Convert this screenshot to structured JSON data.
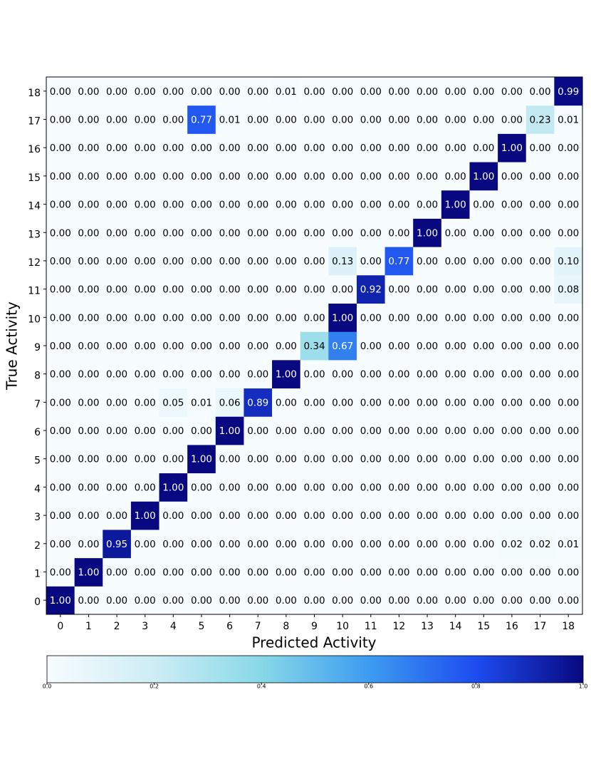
{
  "chart_data": {
    "type": "heatmap",
    "xlabel": "Predicted Activity",
    "ylabel": "True Activity",
    "x_categories": [
      "0",
      "1",
      "2",
      "3",
      "4",
      "5",
      "6",
      "7",
      "8",
      "9",
      "10",
      "11",
      "12",
      "13",
      "14",
      "15",
      "16",
      "17",
      "18"
    ],
    "y_categories": [
      "0",
      "1",
      "2",
      "3",
      "4",
      "5",
      "6",
      "7",
      "8",
      "9",
      "10",
      "11",
      "12",
      "13",
      "14",
      "15",
      "16",
      "17",
      "18"
    ],
    "values": [
      [
        1,
        0,
        0,
        0,
        0,
        0,
        0,
        0,
        0,
        0,
        0,
        0,
        0,
        0,
        0,
        0,
        0,
        0,
        0
      ],
      [
        0,
        1,
        0,
        0,
        0,
        0,
        0,
        0,
        0,
        0,
        0,
        0,
        0,
        0,
        0,
        0,
        0,
        0,
        0
      ],
      [
        0,
        0,
        0.95,
        0,
        0,
        0,
        0,
        0,
        0,
        0,
        0,
        0,
        0,
        0,
        0,
        0,
        0.02,
        0.02,
        0.01
      ],
      [
        0,
        0,
        0,
        1,
        0,
        0,
        0,
        0,
        0,
        0,
        0,
        0,
        0,
        0,
        0,
        0,
        0,
        0,
        0
      ],
      [
        0,
        0,
        0,
        0,
        1,
        0,
        0,
        0,
        0,
        0,
        0,
        0,
        0,
        0,
        0,
        0,
        0,
        0,
        0
      ],
      [
        0,
        0,
        0,
        0,
        0,
        1,
        0,
        0,
        0,
        0,
        0,
        0,
        0,
        0,
        0,
        0,
        0,
        0,
        0
      ],
      [
        0,
        0,
        0,
        0,
        0,
        0,
        1,
        0,
        0,
        0,
        0,
        0,
        0,
        0,
        0,
        0,
        0,
        0,
        0
      ],
      [
        0,
        0,
        0,
        0,
        0.05,
        0.01,
        0.06,
        0.89,
        0,
        0,
        0,
        0,
        0,
        0,
        0,
        0,
        0,
        0,
        0
      ],
      [
        0,
        0,
        0,
        0,
        0,
        0,
        0,
        0,
        1,
        0,
        0,
        0,
        0,
        0,
        0,
        0,
        0,
        0,
        0
      ],
      [
        0,
        0,
        0,
        0,
        0,
        0,
        0,
        0,
        0,
        0.34,
        0.67,
        0,
        0,
        0,
        0,
        0,
        0,
        0,
        0
      ],
      [
        0,
        0,
        0,
        0,
        0,
        0,
        0,
        0,
        0,
        0,
        1,
        0,
        0,
        0,
        0,
        0,
        0,
        0,
        0
      ],
      [
        0,
        0,
        0,
        0,
        0,
        0,
        0,
        0,
        0,
        0,
        0,
        0.92,
        0,
        0,
        0,
        0,
        0,
        0,
        0.08
      ],
      [
        0,
        0,
        0,
        0,
        0,
        0,
        0,
        0,
        0,
        0,
        0.13,
        0,
        0.77,
        0,
        0,
        0,
        0,
        0,
        0.1
      ],
      [
        0,
        0,
        0,
        0,
        0,
        0,
        0,
        0,
        0,
        0,
        0,
        0,
        0,
        1,
        0,
        0,
        0,
        0,
        0
      ],
      [
        0,
        0,
        0,
        0,
        0,
        0,
        0,
        0,
        0,
        0,
        0,
        0,
        0,
        0,
        1,
        0,
        0,
        0,
        0
      ],
      [
        0,
        0,
        0,
        0,
        0,
        0,
        0,
        0,
        0,
        0,
        0,
        0,
        0,
        0,
        0,
        1,
        0,
        0,
        0
      ],
      [
        0,
        0,
        0,
        0,
        0,
        0,
        0,
        0,
        0,
        0,
        0,
        0,
        0,
        0,
        0,
        0,
        1,
        0,
        0
      ],
      [
        0,
        0,
        0,
        0,
        0,
        0.77,
        0.01,
        0,
        0,
        0,
        0,
        0,
        0,
        0,
        0,
        0,
        0,
        0.23,
        0.01
      ],
      [
        0,
        0,
        0,
        0,
        0,
        0,
        0,
        0,
        0.01,
        0,
        0,
        0,
        0,
        0,
        0,
        0,
        0,
        0,
        0.99
      ]
    ],
    "value_labels": [
      [
        "1.00",
        "0.00",
        "0.00",
        "0.00",
        "0.00",
        "0.00",
        "0.00",
        "0.00",
        "0.00",
        "0.00",
        "0.00",
        "0.00",
        "0.00",
        "0.00",
        "0.00",
        "0.00",
        "0.00",
        "0.00",
        "0.00"
      ],
      [
        "0.00",
        "1.00",
        "0.00",
        "0.00",
        "0.00",
        "0.00",
        "0.00",
        "0.00",
        "0.00",
        "0.00",
        "0.00",
        "0.00",
        "0.00",
        "0.00",
        "0.00",
        "0.00",
        "0.00",
        "0.00",
        "0.00"
      ],
      [
        "0.00",
        "0.00",
        "0.95",
        "0.00",
        "0.00",
        "0.00",
        "0.00",
        "0.00",
        "0.00",
        "0.00",
        "0.00",
        "0.00",
        "0.00",
        "0.00",
        "0.00",
        "0.00",
        "0.02",
        "0.02",
        "0.01"
      ],
      [
        "0.00",
        "0.00",
        "0.00",
        "1.00",
        "0.00",
        "0.00",
        "0.00",
        "0.00",
        "0.00",
        "0.00",
        "0.00",
        "0.00",
        "0.00",
        "0.00",
        "0.00",
        "0.00",
        "0.00",
        "0.00",
        "0.00"
      ],
      [
        "0.00",
        "0.00",
        "0.00",
        "0.00",
        "1.00",
        "0.00",
        "0.00",
        "0.00",
        "0.00",
        "0.00",
        "0.00",
        "0.00",
        "0.00",
        "0.00",
        "0.00",
        "0.00",
        "0.00",
        "0.00",
        "0.00"
      ],
      [
        "0.00",
        "0.00",
        "0.00",
        "0.00",
        "0.00",
        "1.00",
        "0.00",
        "0.00",
        "0.00",
        "0.00",
        "0.00",
        "0.00",
        "0.00",
        "0.00",
        "0.00",
        "0.00",
        "0.00",
        "0.00",
        "0.00"
      ],
      [
        "0.00",
        "0.00",
        "0.00",
        "0.00",
        "0.00",
        "0.00",
        "1.00",
        "0.00",
        "0.00",
        "0.00",
        "0.00",
        "0.00",
        "0.00",
        "0.00",
        "0.00",
        "0.00",
        "0.00",
        "0.00",
        "0.00"
      ],
      [
        "0.00",
        "0.00",
        "0.00",
        "0.00",
        "0.05",
        "0.01",
        "0.06",
        "0.89",
        "0.00",
        "0.00",
        "0.00",
        "0.00",
        "0.00",
        "0.00",
        "0.00",
        "0.00",
        "0.00",
        "0.00",
        "0.00"
      ],
      [
        "0.00",
        "0.00",
        "0.00",
        "0.00",
        "0.00",
        "0.00",
        "0.00",
        "0.00",
        "1.00",
        "0.00",
        "0.00",
        "0.00",
        "0.00",
        "0.00",
        "0.00",
        "0.00",
        "0.00",
        "0.00",
        "0.00"
      ],
      [
        "0.00",
        "0.00",
        "0.00",
        "0.00",
        "0.00",
        "0.00",
        "0.00",
        "0.00",
        "0.00",
        "0.34",
        "0.67",
        "0.00",
        "0.00",
        "0.00",
        "0.00",
        "0.00",
        "0.00",
        "0.00",
        "0.00"
      ],
      [
        "0.00",
        "0.00",
        "0.00",
        "0.00",
        "0.00",
        "0.00",
        "0.00",
        "0.00",
        "0.00",
        "0.00",
        "1.00",
        "0.00",
        "0.00",
        "0.00",
        "0.00",
        "0.00",
        "0.00",
        "0.00",
        "0.00"
      ],
      [
        "0.00",
        "0.00",
        "0.00",
        "0.00",
        "0.00",
        "0.00",
        "0.00",
        "0.00",
        "0.00",
        "0.00",
        "0.00",
        "0.92",
        "0.00",
        "0.00",
        "0.00",
        "0.00",
        "0.00",
        "0.00",
        "0.08"
      ],
      [
        "0.00",
        "0.00",
        "0.00",
        "0.00",
        "0.00",
        "0.00",
        "0.00",
        "0.00",
        "0.00",
        "0.00",
        "0.13",
        "0.00",
        "0.77",
        "0.00",
        "0.00",
        "0.00",
        "0.00",
        "0.00",
        "0.10"
      ],
      [
        "0.00",
        "0.00",
        "0.00",
        "0.00",
        "0.00",
        "0.00",
        "0.00",
        "0.00",
        "0.00",
        "0.00",
        "0.00",
        "0.00",
        "0.00",
        "1.00",
        "0.00",
        "0.00",
        "0.00",
        "0.00",
        "0.00"
      ],
      [
        "0.00",
        "0.00",
        "0.00",
        "0.00",
        "0.00",
        "0.00",
        "0.00",
        "0.00",
        "0.00",
        "0.00",
        "0.00",
        "0.00",
        "0.00",
        "0.00",
        "1.00",
        "0.00",
        "0.00",
        "0.00",
        "0.00"
      ],
      [
        "0.00",
        "0.00",
        "0.00",
        "0.00",
        "0.00",
        "0.00",
        "0.00",
        "0.00",
        "0.00",
        "0.00",
        "0.00",
        "0.00",
        "0.00",
        "0.00",
        "0.00",
        "1.00",
        "0.00",
        "0.00",
        "0.00"
      ],
      [
        "0.00",
        "0.00",
        "0.00",
        "0.00",
        "0.00",
        "0.00",
        "0.00",
        "0.00",
        "0.00",
        "0.00",
        "0.00",
        "0.00",
        "0.00",
        "0.00",
        "0.00",
        "0.00",
        "1.00",
        "0.00",
        "0.00"
      ],
      [
        "0.00",
        "0.00",
        "0.00",
        "0.00",
        "0.00",
        "0.77",
        "0.01",
        "0.00",
        "0.00",
        "0.00",
        "0.00",
        "0.00",
        "0.00",
        "0.00",
        "0.00",
        "0.00",
        "0.00",
        "0.23",
        "0.01"
      ],
      [
        "0.00",
        "0.00",
        "0.00",
        "0.00",
        "0.00",
        "0.00",
        "0.00",
        "0.00",
        "0.01",
        "0.00",
        "0.00",
        "0.00",
        "0.00",
        "0.00",
        "0.00",
        "0.00",
        "0.00",
        "0.00",
        "0.99"
      ]
    ],
    "colormap": [
      "#f7fcfe",
      "#cdedf5",
      "#88d8e8",
      "#3d9cf0",
      "#1d4cf0",
      "#080880"
    ],
    "colorbar": {
      "lim": [
        0,
        1
      ],
      "ticks": [
        {
          "value": 0,
          "label": "0.0"
        },
        0.2,
        0.4,
        0.6,
        0.8,
        {
          "value": 1,
          "label": "1.0"
        }
      ]
    }
  }
}
